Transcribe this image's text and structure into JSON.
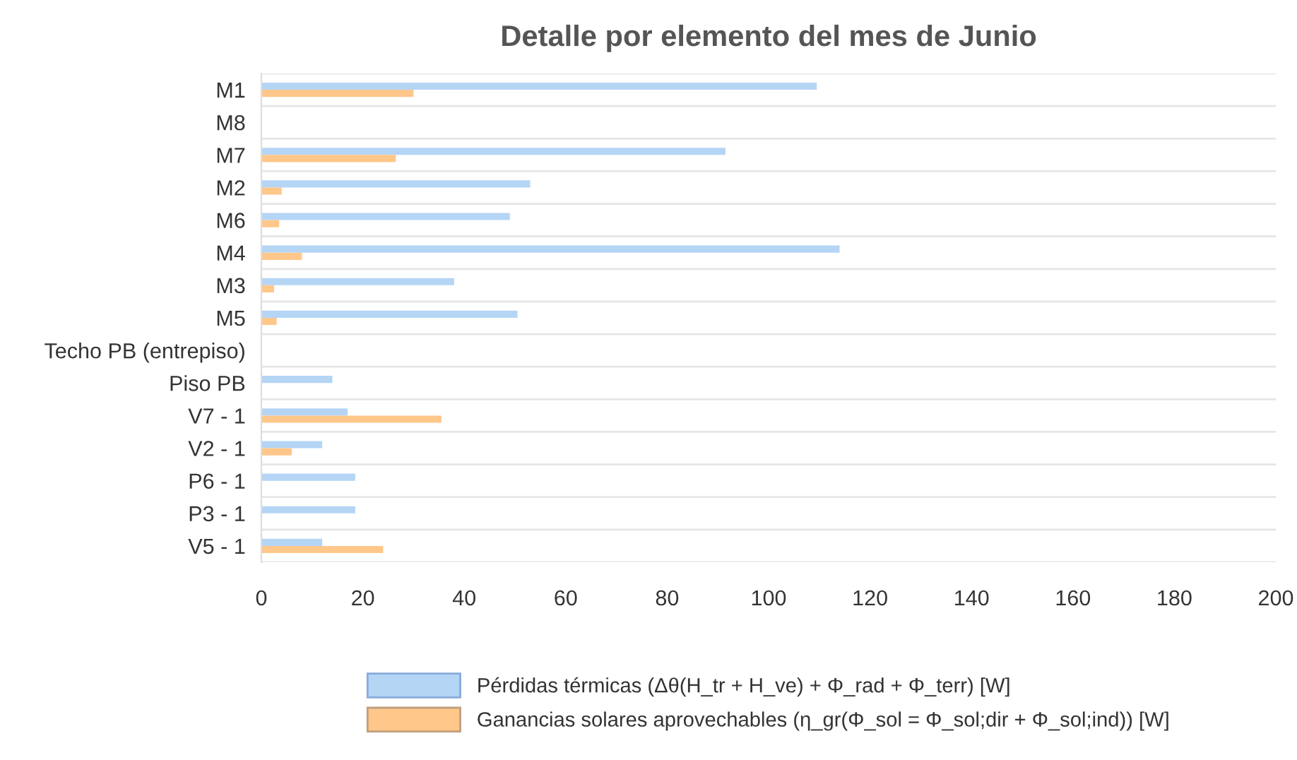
{
  "chart_data": {
    "type": "bar",
    "orientation": "horizontal",
    "title": "Detalle por elemento del mes de Junio",
    "categories": [
      "M1",
      "M8",
      "M7",
      "M2",
      "M6",
      "M4",
      "M3",
      "M5",
      "Techo PB (entrepiso)",
      "Piso PB",
      "V7 - 1",
      "V2 - 1",
      "P6 - 1",
      "P3 - 1",
      "V5 - 1"
    ],
    "series": [
      {
        "name": "Pérdidas térmicas (Δθ(H_tr + H_ve) + Φ_rad + Φ_terr) [W]",
        "color": "#b5d5f5",
        "values": [
          109.5,
          0,
          91.5,
          53,
          49,
          114,
          38,
          50.5,
          0,
          14,
          17,
          12,
          18.5,
          18.5,
          12
        ]
      },
      {
        "name": "Ganancias solares aprovechables (η_gr(Φ_sol = Φ_sol;dir + Φ_sol;ind)) [W]",
        "color": "#ffc78a",
        "values": [
          30,
          0,
          26.5,
          4,
          3.5,
          8,
          2.5,
          3,
          0,
          0,
          35.5,
          6,
          0,
          0,
          24
        ]
      }
    ],
    "xlim": [
      0,
      200
    ],
    "xticks": [
      0,
      20,
      40,
      60,
      80,
      100,
      120,
      140,
      160,
      180,
      200
    ],
    "grid": "y",
    "legend": "bottom"
  }
}
